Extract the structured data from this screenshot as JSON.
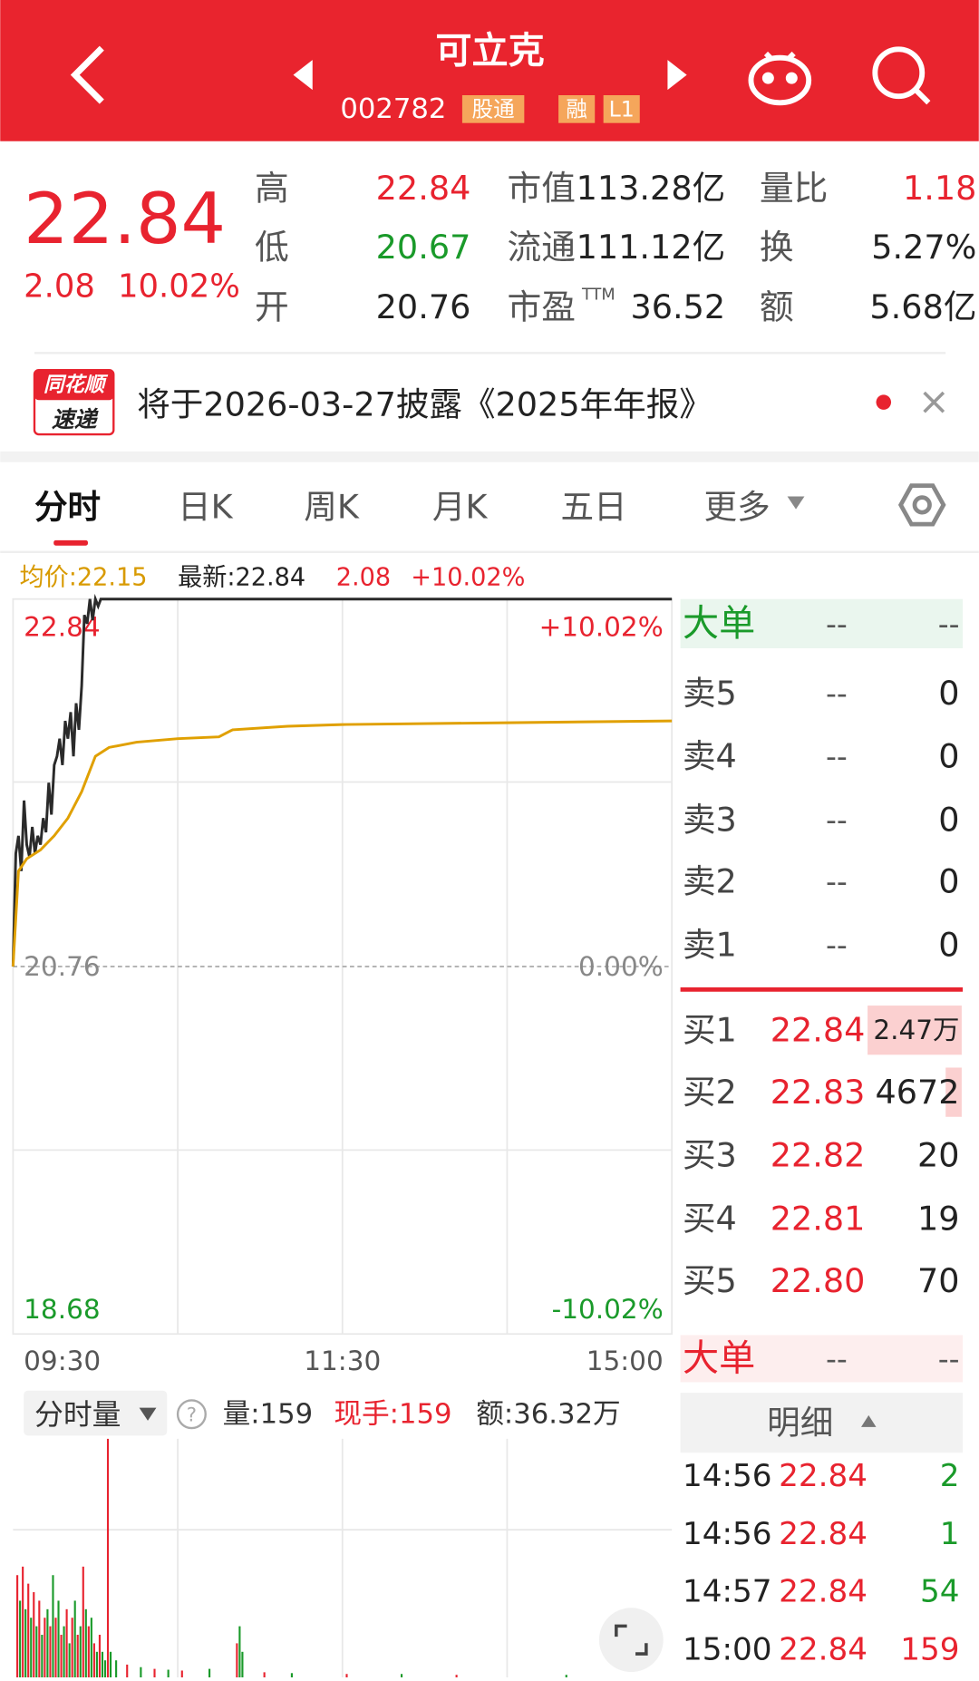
{
  "header": {
    "title": "可立克",
    "code": "002782",
    "badges": [
      "股通",
      "融",
      "L1"
    ]
  },
  "quote": {
    "price": "22.84",
    "change": "2.08",
    "change_pct": "10.02%",
    "ttm": "TTM",
    "rows": [
      [
        [
          "高",
          "22.84"
        ],
        [
          "市值",
          "113.28亿"
        ],
        [
          "量比",
          "1.18"
        ]
      ],
      [
        [
          "低",
          "20.67"
        ],
        [
          "流通",
          "111.12亿"
        ],
        [
          "换",
          "5.27%"
        ]
      ],
      [
        [
          "开",
          "20.76"
        ],
        [
          "市盈",
          "36.52"
        ],
        [
          "额",
          "5.68亿"
        ]
      ]
    ]
  },
  "news": {
    "logo_top": "同花顺",
    "logo_bottom": "速递",
    "text": "将于2026-03-27披露《2025年年报》"
  },
  "tabs": [
    "分时",
    "日K",
    "周K",
    "月K",
    "五日",
    "更多"
  ],
  "chart_data": [
    {
      "type": "line",
      "legend": [
        "均价:22.15",
        "最新:22.84",
        "2.08",
        "+10.02%"
      ],
      "xlim": [
        0,
        240
      ],
      "xticks": [
        {
          "value": 0,
          "label": "09:30"
        },
        {
          "value": 120,
          "label": "11:30"
        },
        {
          "value": 240,
          "label": "15:00"
        }
      ],
      "ylim": [
        18.68,
        22.84
      ],
      "yticks": [
        22.84,
        20.76,
        18.68
      ],
      "y2lim": [
        18.68,
        22.84
      ],
      "y2ticks": [
        {
          "value": 22.84,
          "label": "+10.02%"
        },
        {
          "value": 20.76,
          "label": "0.00%"
        },
        {
          "value": 18.68,
          "label": "-10.02%"
        }
      ],
      "series": [
        {
          "color": "#2a2a2a",
          "x": [
            0,
            1,
            2,
            3,
            4,
            5,
            6,
            7,
            8,
            9,
            10,
            11,
            12,
            13,
            14,
            15,
            16,
            17,
            18,
            19,
            20,
            21,
            22,
            23,
            24,
            25,
            26,
            27,
            28,
            29,
            30,
            31,
            32,
            33,
            34,
            240
          ],
          "values": [
            20.76,
            21.4,
            21.5,
            21.3,
            21.7,
            21.45,
            21.38,
            21.55,
            21.4,
            21.5,
            21.45,
            21.6,
            21.52,
            21.8,
            21.62,
            21.9,
            21.95,
            22.05,
            21.9,
            22.15,
            22.05,
            22.2,
            21.95,
            22.25,
            22.1,
            22.35,
            22.75,
            22.7,
            22.84,
            22.72,
            22.84,
            22.8,
            22.84,
            22.84,
            22.84,
            22.84
          ]
        },
        {
          "color": "#e0a000",
          "x": [
            0,
            2,
            5,
            10,
            15,
            20,
            25,
            30,
            35,
            45,
            60,
            75,
            80,
            100,
            120,
            180,
            240
          ],
          "values": [
            20.76,
            21.3,
            21.37,
            21.42,
            21.5,
            21.6,
            21.75,
            21.95,
            22.0,
            22.03,
            22.05,
            22.06,
            22.1,
            22.12,
            22.13,
            22.14,
            22.15
          ]
        }
      ]
    },
    {
      "type": "bar",
      "title": "分时量",
      "help": "?",
      "stats": [
        "量:159",
        "现手:159",
        "额:36.32万"
      ],
      "xlim": [
        0,
        240
      ],
      "ylim": [
        0,
        2800
      ],
      "series": [
        {
          "color": "#e8232f",
          "x": [
            0,
            2,
            4,
            6,
            8,
            10,
            12,
            14,
            16,
            18,
            20,
            22,
            24,
            26,
            28,
            30,
            33,
            40,
            50,
            60,
            80,
            90,
            120,
            160,
            240
          ],
          "values": [
            1200,
            1300,
            1100,
            1000,
            900,
            700,
            600,
            700,
            500,
            800,
            700,
            500,
            1300,
            600,
            400,
            500,
            2800,
            150,
            100,
            80,
            400,
            60,
            40,
            30,
            159
          ]
        },
        {
          "color": "#1a9a2a",
          "x": [
            1,
            3,
            5,
            7,
            9,
            11,
            13,
            15,
            17,
            19,
            21,
            23,
            25,
            27,
            29,
            31,
            32,
            34,
            36,
            45,
            55,
            70,
            81,
            82,
            100,
            140,
            200
          ],
          "values": [
            900,
            800,
            700,
            600,
            500,
            800,
            1200,
            900,
            600,
            400,
            900,
            600,
            800,
            700,
            300,
            300,
            200,
            300,
            200,
            120,
            90,
            100,
            600,
            300,
            50,
            40,
            30
          ]
        }
      ]
    }
  ],
  "order_book": {
    "big_top": [
      "大单",
      "--",
      "--"
    ],
    "asks": [
      [
        "卖5",
        "--",
        "0"
      ],
      [
        "卖4",
        "--",
        "0"
      ],
      [
        "卖3",
        "--",
        "0"
      ],
      [
        "卖2",
        "--",
        "0"
      ],
      [
        "卖1",
        "--",
        "0"
      ]
    ],
    "bids": [
      [
        "买1",
        "22.84",
        "2.47万"
      ],
      [
        "买2",
        "22.83",
        "4672"
      ],
      [
        "买3",
        "22.82",
        "20"
      ],
      [
        "买4",
        "22.81",
        "19"
      ],
      [
        "买5",
        "22.80",
        "70"
      ]
    ],
    "big_bottom": [
      "大单",
      "--",
      "--"
    ],
    "detail": "明细",
    "trades": [
      [
        "14:56",
        "22.84",
        "2"
      ],
      [
        "14:56",
        "22.84",
        "1"
      ],
      [
        "14:57",
        "22.84",
        "54"
      ],
      [
        "15:00",
        "22.84",
        "159"
      ]
    ]
  }
}
